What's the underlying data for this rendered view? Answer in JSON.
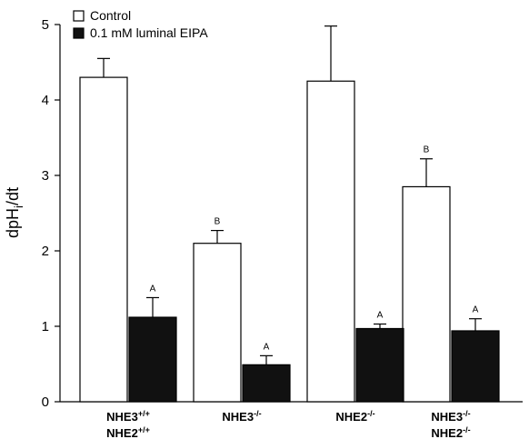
{
  "chart_data": {
    "type": "bar",
    "ylabel": {
      "main": "dpH",
      "sub": "i",
      "tail": "/dt"
    },
    "ylim": [
      0,
      5
    ],
    "yticks": [
      "0",
      "1",
      "2",
      "3",
      "4",
      "5"
    ],
    "grid": false,
    "legend": {
      "placement": "top-left",
      "entries": [
        {
          "label": "Control",
          "fill": "#ffffff"
        },
        {
          "label": "0.1 mM luminal EIPA",
          "fill": "#111111"
        }
      ]
    },
    "categories": [
      {
        "lines": [
          {
            "base": "NHE3",
            "sup": "+/+"
          },
          {
            "base": "NHE2",
            "sup": "+/+"
          }
        ]
      },
      {
        "lines": [
          {
            "base": "NHE3",
            "sup": "-/-"
          }
        ]
      },
      {
        "lines": [
          {
            "base": "NHE2",
            "sup": "-/-"
          }
        ]
      },
      {
        "lines": [
          {
            "base": "NHE3",
            "sup": "-/-"
          },
          {
            "base": "NHE2",
            "sup": "-/-"
          }
        ]
      }
    ],
    "series": [
      {
        "name": "Control",
        "color": "#ffffff",
        "values": [
          4.3,
          2.1,
          4.25,
          2.85
        ],
        "errors": [
          0.25,
          0.17,
          0.73,
          0.37
        ],
        "labels": [
          "",
          "B",
          "",
          "B"
        ]
      },
      {
        "name": "0.1 mM luminal EIPA",
        "color": "#111111",
        "values": [
          1.12,
          0.49,
          0.97,
          0.94
        ],
        "errors": [
          0.26,
          0.12,
          0.06,
          0.16
        ],
        "labels": [
          "A",
          "A",
          "A",
          "A"
        ]
      }
    ]
  }
}
